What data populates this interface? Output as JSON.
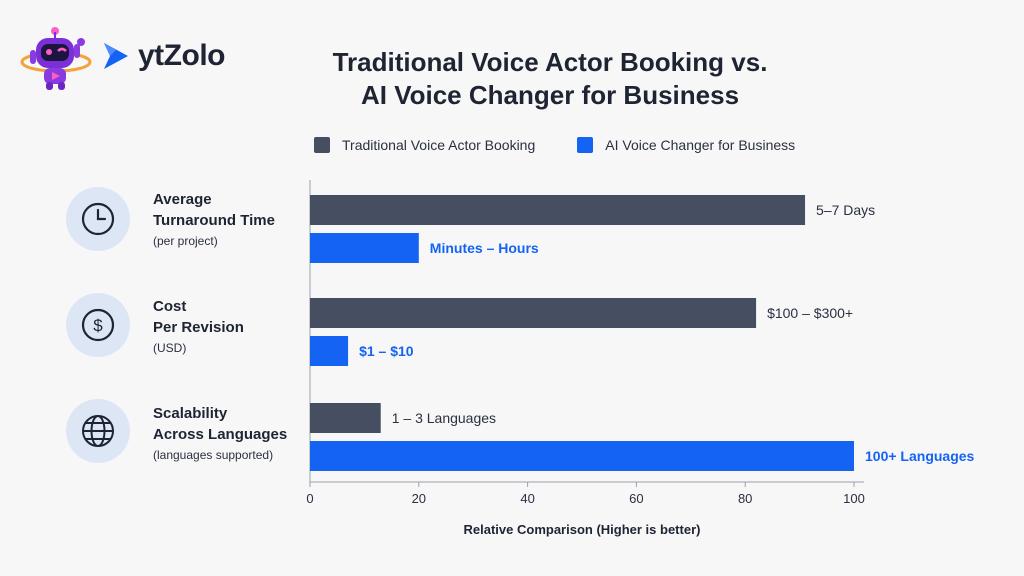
{
  "brand": {
    "name": "ytZolo"
  },
  "title_line1": "Traditional Voice Actor Booking vs.",
  "title_line2": "AI Voice Changer for Business",
  "colors": {
    "traditional": "#454f61",
    "ai": "#1463f3",
    "axis": "#9aa0aa",
    "icon_bg": "#dde6f5"
  },
  "legend": [
    {
      "label": "Traditional Voice Actor Booking",
      "color": "#454f61"
    },
    {
      "label": "AI Voice Changer for Business",
      "color": "#1463f3"
    }
  ],
  "categories": [
    {
      "title_line1": "Average",
      "title_line2": "Turnaround Time",
      "sub": "(per project)",
      "icon": "clock-icon"
    },
    {
      "title_line1": "Cost",
      "title_line2": "Per Revision",
      "sub": "(USD)",
      "icon": "dollar-icon"
    },
    {
      "title_line1": "Scalability",
      "title_line2": "Across Languages",
      "sub": "(languages supported)",
      "icon": "globe-icon"
    }
  ],
  "chart_data": {
    "type": "bar",
    "orientation": "horizontal",
    "categories": [
      "Average Turnaround Time (per project)",
      "Cost Per Revision (USD)",
      "Scalability Across Languages (languages supported)"
    ],
    "series": [
      {
        "name": "Traditional Voice Actor Booking",
        "values": [
          91,
          82,
          13
        ],
        "labels": [
          "5–7 Days",
          "$100 – $300+",
          "1 – 3 Languages"
        ]
      },
      {
        "name": "AI Voice Changer for Business",
        "values": [
          20,
          7,
          100
        ],
        "labels": [
          "Minutes – Hours",
          "$1 – $10",
          "100+ Languages"
        ]
      }
    ],
    "xlabel": "Relative Comparison (Higher is better)",
    "xlim": [
      0,
      100
    ],
    "xticks": [
      0,
      20,
      40,
      60,
      80,
      100
    ],
    "grid": false,
    "legend_position": "top"
  }
}
